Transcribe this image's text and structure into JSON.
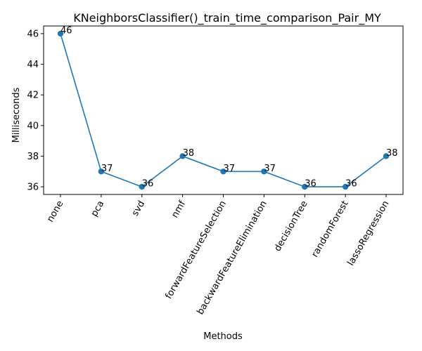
{
  "chart_data": {
    "type": "line",
    "title": "KNeighborsClassifier()_train_time_comparison_Pair_MY",
    "xlabel": "Methods",
    "ylabel": "Milliseconds",
    "categories": [
      "none",
      "pca",
      "svd",
      "nmf",
      "forwardFeatureSelection",
      "backwardFeatureElimination",
      "decisionTree",
      "randomForest",
      "lassoRegression"
    ],
    "series": [
      {
        "values": [
          46,
          37,
          36,
          38,
          37,
          37,
          36,
          36,
          38
        ]
      }
    ],
    "data_labels": [
      "46",
      "37",
      "36",
      "38",
      "37",
      "37",
      "36",
      "36",
      "38"
    ],
    "ylim": [
      35.5,
      46.5
    ],
    "yticks": [
      36,
      38,
      40,
      42,
      44,
      46
    ],
    "ytick_labels": [
      "36",
      "38",
      "40",
      "42",
      "44",
      "46"
    ],
    "grid": false,
    "legend": "none",
    "colors": {
      "line": "#1f77b4",
      "marker": "#1f77b4",
      "axes": "#000000"
    }
  }
}
